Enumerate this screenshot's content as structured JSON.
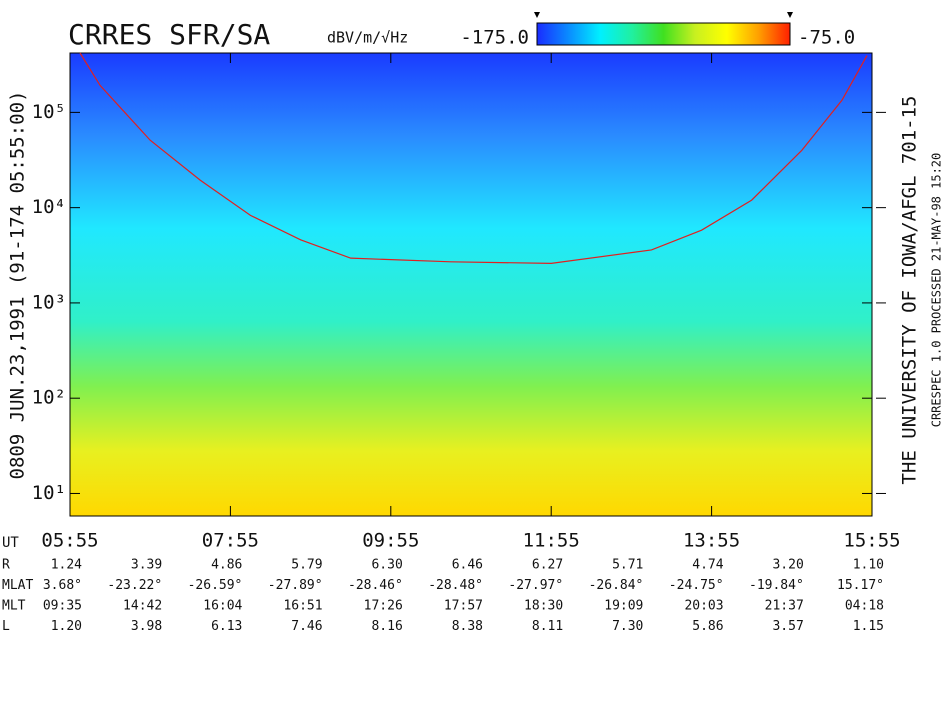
{
  "chart_data": {
    "type": "spectrogram",
    "title": "CRRES SFR/SA",
    "colorbar": {
      "label": "dBV/m/√Hz",
      "lim": [
        -175,
        -75
      ],
      "ticks": [
        {
          "value": -175,
          "label": "-175.0"
        },
        {
          "value": -75,
          "label": "-75.0"
        }
      ],
      "colormap": [
        "#1a2cff",
        "#0a8cff",
        "#00f0ff",
        "#20f0a0",
        "#40e020",
        "#c8f020",
        "#ffff00",
        "#ffa000",
        "#ff2000"
      ]
    },
    "ylog": true,
    "ylim": [
      5.8,
      420000
    ],
    "yticks": [
      {
        "value": 10,
        "label": "10¹"
      },
      {
        "value": 100,
        "label": "10²"
      },
      {
        "value": 1000,
        "label": "10³"
      },
      {
        "value": 10000,
        "label": "10⁴"
      },
      {
        "value": 100000,
        "label": "10⁵"
      }
    ],
    "xlabel": "UT",
    "xlim": [
      355,
      955
    ],
    "xticks": [
      {
        "value": 355,
        "label": "05:55"
      },
      {
        "value": 475,
        "label": "07:55"
      },
      {
        "value": 595,
        "label": "09:55"
      },
      {
        "value": 715,
        "label": "11:55"
      },
      {
        "value": 835,
        "label": "13:55"
      },
      {
        "value": 955,
        "label": "15:55"
      }
    ],
    "series": [
      {
        "color": "#e02020",
        "x": [
          362.5,
          377.5,
          415,
          452.5,
          490,
          527.5,
          565,
          640,
          715,
          790,
          827.5,
          865,
          902.5,
          932.5,
          951.25
        ],
        "values": [
          420000,
          192000,
          51000,
          19400,
          8300,
          4600,
          2950,
          2700,
          2600,
          3600,
          5800,
          12000,
          40000,
          134000,
          395000
        ]
      }
    ],
    "left_label": "0809  JUN.23,1991  (91-174 05:55:00)",
    "right_label": "THE UNIVERSITY OF IOWA/AFGL 701-15",
    "right_sublabel": "CRRESPEC 1.0   PROCESSED 21-MAY-98  15:20",
    "table": {
      "rows": [
        {
          "label": "R",
          "values": [
            "1.24",
            "3.39",
            "4.86",
            "5.79",
            "6.30",
            "6.46",
            "6.27",
            "5.71",
            "4.74",
            "3.20",
            "1.10"
          ]
        },
        {
          "label": "MLAT",
          "values": [
            "3.68°",
            "-23.22°",
            "-26.59°",
            "-27.89°",
            "-28.46°",
            "-28.48°",
            "-27.97°",
            "-26.84°",
            "-24.75°",
            "-19.84°",
            "15.17°"
          ]
        },
        {
          "label": "MLT",
          "values": [
            "09:35",
            "14:42",
            "16:04",
            "16:51",
            "17:26",
            "17:57",
            "18:30",
            "19:09",
            "20:03",
            "21:37",
            "04:18"
          ]
        },
        {
          "label": "L",
          "values": [
            "1.20",
            "3.98",
            "6.13",
            "7.46",
            "8.16",
            "8.38",
            "8.11",
            "7.30",
            "5.86",
            "3.57",
            "1.15"
          ]
        }
      ]
    }
  }
}
